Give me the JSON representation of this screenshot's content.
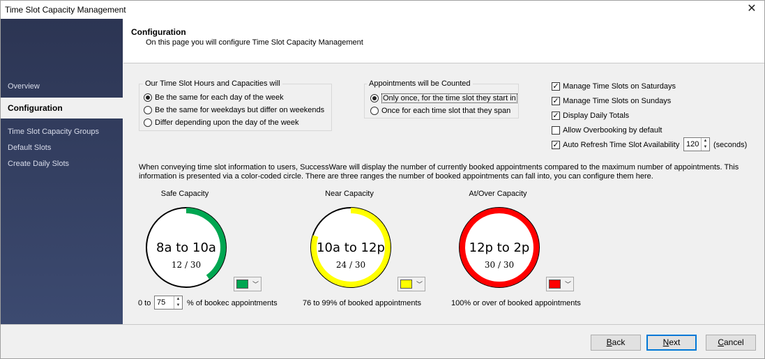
{
  "window": {
    "title": "Time Slot Capacity Management",
    "close_glyph": "✕"
  },
  "sidebar": {
    "items": [
      {
        "label": "Overview"
      },
      {
        "label": "Configuration"
      },
      {
        "label": "Time Slot Capacity Groups"
      },
      {
        "label": "Default Slots"
      },
      {
        "label": "Create Daily Slots"
      }
    ]
  },
  "header": {
    "title": "Configuration",
    "subtitle": "On this page you will configure Time Slot Capacity Management"
  },
  "hours_group": {
    "label": "Our Time Slot Hours and Capacities will",
    "options": [
      {
        "label": "Be the same for each day of the week",
        "selected": true
      },
      {
        "label": "Be the same for weekdays but differ on weekends",
        "selected": false
      },
      {
        "label": "Differ depending upon the day of the week",
        "selected": false
      }
    ]
  },
  "counted_group": {
    "label": "Appointments will be Counted",
    "options": [
      {
        "label": "Only once, for the time slot they start in",
        "selected": true
      },
      {
        "label": "Once for each time slot that they span",
        "selected": false
      }
    ]
  },
  "options": {
    "saturdays": {
      "label": "Manage Time Slots on Saturdays",
      "checked": true
    },
    "sundays": {
      "label": "Manage Time Slots on Sundays",
      "checked": true
    },
    "daily_totals": {
      "label": "Display Daily Totals",
      "checked": true
    },
    "overbooking": {
      "label": "Allow Overbooking by default",
      "checked": false
    },
    "auto_refresh": {
      "label": "Auto Refresh Time Slot Availability",
      "checked": true,
      "value": "120",
      "unit": "(seconds)"
    }
  },
  "description": "When conveying time slot information to users, SuccessWare will display the number of currently booked appointments compared to the maximum number of appointments. This information is presented via a color-coded circle. There are three ranges the number of booked appointments can fall into, you can configure them here.",
  "capacities": [
    {
      "title": "Safe Capacity",
      "time": "8a to 10a",
      "count": "12 / 30",
      "booked": 12,
      "max": 30,
      "color": "#00a651",
      "range_prefix": "0 to",
      "range_value": "75",
      "range_suffix": "% of bookec appointments"
    },
    {
      "title": "Near Capacity",
      "time": "10a to 12p",
      "count": "24 / 30",
      "booked": 24,
      "max": 30,
      "color": "#ffff00",
      "range_label": "76 to 99% of booked appointments"
    },
    {
      "title": "At/Over Capacity",
      "time": "12p to 2p",
      "count": "30 / 30",
      "booked": 30,
      "max": 30,
      "color": "#ff0000",
      "range_label": "100% or over of booked appointments"
    }
  ],
  "buttons": {
    "back": {
      "mnemonic": "B",
      "rest": "ack"
    },
    "next": {
      "mnemonic": "N",
      "rest": "ext"
    },
    "cancel": {
      "mnemonic": "C",
      "rest": "ancel"
    }
  }
}
